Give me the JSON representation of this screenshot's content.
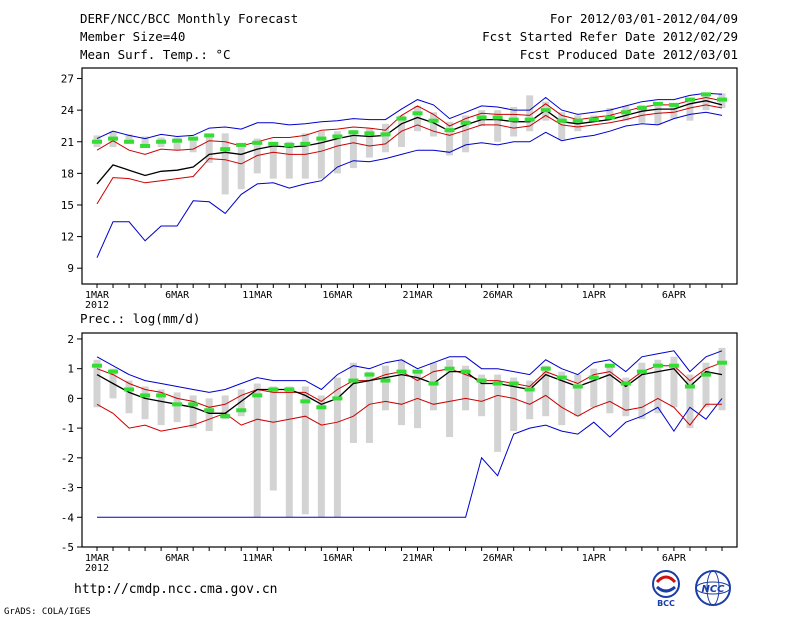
{
  "header": {
    "title": "DERF/NCC/BCC Monthly Forecast",
    "member_size": "Member Size=40",
    "variable": "Mean Surf. Temp.: °C",
    "forecast_for": "For 2012/03/01-2012/04/09",
    "started_refer": "Fcst Started Refer Date 2012/02/29",
    "produced": "Fcst Produced Date 2012/03/01"
  },
  "footer": {
    "url": "http://cmdp.ncc.cma.gov.cn",
    "credit": "GrADS: COLA/IGES",
    "logo_bcc_text": "BCC",
    "logo_ncc_text": "NCC"
  },
  "colors": {
    "ensemble_mean": "#000000",
    "envelope": "#0000cc",
    "spread": "#cc0000",
    "member_marker": "#33dd33",
    "range_bar": "#d3d3d3"
  },
  "chart_data": [
    {
      "type": "line",
      "title": "Mean Surf. Temp.: °C",
      "x_tick_labels": [
        "1MAR",
        "6MAR",
        "11MAR",
        "16MAR",
        "21MAR",
        "26MAR",
        "1APR",
        "6APR"
      ],
      "x_tick_days": [
        1,
        6,
        11,
        16,
        21,
        26,
        32,
        37
      ],
      "year_label": "2012",
      "xlim": [
        1,
        40
      ],
      "ylim": [
        7.5,
        28
      ],
      "yticks": [
        9,
        12,
        15,
        18,
        21,
        24,
        27
      ],
      "days": [
        1,
        2,
        3,
        4,
        5,
        6,
        7,
        8,
        9,
        10,
        11,
        12,
        13,
        14,
        15,
        16,
        17,
        18,
        19,
        20,
        21,
        22,
        23,
        24,
        25,
        26,
        27,
        28,
        29,
        30,
        31,
        32,
        33,
        34,
        35,
        36,
        37,
        38,
        39,
        40
      ],
      "series": [
        {
          "name": "max",
          "color": "#0000cc",
          "values": [
            21.3,
            22.0,
            21.6,
            21.3,
            21.7,
            21.5,
            21.6,
            22.3,
            22.4,
            22.2,
            22.8,
            22.8,
            22.6,
            22.7,
            22.9,
            23.0,
            23.2,
            23.1,
            23.1,
            24.1,
            25.0,
            24.5,
            23.2,
            23.8,
            24.4,
            24.3,
            24.0,
            24.0,
            25.2,
            24.0,
            23.6,
            23.8,
            24.0,
            24.4,
            24.8,
            25.0,
            25.0,
            25.4,
            25.6,
            25.5
          ]
        },
        {
          "name": "upper",
          "color": "#cc0000",
          "values": [
            20.2,
            21.1,
            20.2,
            19.8,
            20.3,
            20.2,
            20.3,
            21.1,
            21.0,
            20.6,
            21.0,
            21.4,
            21.4,
            21.6,
            22.1,
            22.2,
            22.4,
            22.3,
            22.1,
            23.5,
            24.4,
            23.6,
            22.5,
            23.2,
            23.7,
            23.6,
            23.6,
            23.5,
            24.6,
            23.5,
            23.1,
            23.3,
            23.5,
            23.9,
            24.3,
            24.5,
            24.5,
            24.9,
            25.2,
            24.9
          ]
        },
        {
          "name": "mean",
          "color": "#000000",
          "values": [
            17.0,
            18.8,
            18.3,
            17.8,
            18.2,
            18.3,
            18.6,
            19.8,
            20.0,
            19.8,
            20.3,
            20.6,
            20.5,
            20.6,
            20.9,
            21.3,
            21.6,
            21.5,
            21.6,
            22.7,
            23.3,
            22.8,
            22.0,
            22.6,
            23.1,
            23.1,
            22.9,
            22.9,
            24.0,
            22.9,
            22.7,
            22.9,
            23.1,
            23.5,
            23.9,
            24.1,
            24.1,
            24.6,
            24.9,
            24.5
          ]
        },
        {
          "name": "lower",
          "color": "#cc0000",
          "values": [
            15.1,
            17.6,
            17.5,
            17.1,
            17.3,
            17.5,
            17.7,
            19.4,
            19.3,
            18.9,
            19.7,
            20.0,
            19.8,
            19.8,
            20.1,
            20.6,
            20.9,
            20.6,
            20.8,
            22.0,
            22.6,
            22.0,
            21.6,
            22.1,
            22.6,
            22.6,
            22.3,
            22.5,
            23.5,
            22.6,
            22.4,
            22.6,
            22.8,
            23.1,
            23.5,
            23.7,
            23.8,
            24.2,
            24.5,
            24.2
          ]
        },
        {
          "name": "min",
          "color": "#0000cc",
          "values": [
            10.0,
            13.4,
            13.4,
            11.6,
            13.0,
            13.0,
            15.4,
            15.3,
            14.2,
            16.0,
            17.0,
            17.1,
            16.6,
            17.0,
            17.3,
            18.6,
            19.2,
            19.1,
            19.4,
            19.8,
            20.2,
            20.2,
            20.0,
            20.7,
            20.9,
            20.7,
            21.0,
            21.0,
            21.9,
            21.1,
            21.4,
            21.6,
            22.0,
            22.5,
            22.7,
            22.6,
            23.2,
            23.6,
            23.8,
            23.5
          ]
        },
        {
          "name": "bar_low",
          "color": "#d3d3d3",
          "values": [
            20.5,
            20.5,
            20.8,
            20.5,
            20.5,
            20.2,
            20.0,
            19.0,
            16.0,
            16.5,
            18.0,
            17.5,
            17.5,
            17.5,
            17.5,
            18.0,
            18.5,
            19.5,
            20.0,
            20.5,
            22.0,
            21.5,
            19.7,
            20.0,
            22.5,
            21.0,
            21.5,
            22.0,
            23.0,
            21.2,
            22.0,
            23.0,
            23.2,
            23.0,
            22.8,
            22.6,
            23.2,
            23.0,
            24.0,
            24.2
          ]
        },
        {
          "name": "bar_high",
          "color": "#d3d3d3",
          "values": [
            21.6,
            22.0,
            21.7,
            21.5,
            21.4,
            21.4,
            21.3,
            21.7,
            21.8,
            20.8,
            21.3,
            21.0,
            21.0,
            21.8,
            22.0,
            22.0,
            22.1,
            22.3,
            22.7,
            23.5,
            24.4,
            23.8,
            22.9,
            23.5,
            24.0,
            24.0,
            24.3,
            25.4,
            24.8,
            23.8,
            23.5,
            23.5,
            24.2,
            24.4,
            24.5,
            24.7,
            24.6,
            25.2,
            25.6,
            25.6
          ]
        },
        {
          "name": "observed",
          "color": "#33dd33",
          "values": [
            21.0,
            21.3,
            21.0,
            20.6,
            21.0,
            21.1,
            21.3,
            21.6,
            20.3,
            20.7,
            20.9,
            20.8,
            20.7,
            20.8,
            21.3,
            21.5,
            21.9,
            21.8,
            21.7,
            23.2,
            23.7,
            23.0,
            22.1,
            22.8,
            23.3,
            23.3,
            23.1,
            23.1,
            24.0,
            23.0,
            23.0,
            23.1,
            23.3,
            23.8,
            24.2,
            24.6,
            24.5,
            25.0,
            25.5,
            25.0
          ]
        }
      ]
    },
    {
      "type": "line",
      "title": "Prec.: log(mm/d)",
      "x_tick_labels": [
        "1MAR",
        "6MAR",
        "11MAR",
        "16MAR",
        "21MAR",
        "26MAR",
        "1APR",
        "6APR"
      ],
      "x_tick_days": [
        1,
        6,
        11,
        16,
        21,
        26,
        32,
        37
      ],
      "year_label": "2012",
      "xlim": [
        1,
        40
      ],
      "ylim": [
        -5,
        2.2
      ],
      "yticks": [
        -5,
        -4,
        -3,
        -2,
        -1,
        0,
        1,
        2
      ],
      "days": [
        1,
        2,
        3,
        4,
        5,
        6,
        7,
        8,
        9,
        10,
        11,
        12,
        13,
        14,
        15,
        16,
        17,
        18,
        19,
        20,
        21,
        22,
        23,
        24,
        25,
        26,
        27,
        28,
        29,
        30,
        31,
        32,
        33,
        34,
        35,
        36,
        37,
        38,
        39,
        40
      ],
      "series": [
        {
          "name": "max",
          "color": "#0000cc",
          "values": [
            1.4,
            1.1,
            0.8,
            0.6,
            0.5,
            0.4,
            0.3,
            0.2,
            0.3,
            0.5,
            0.7,
            0.6,
            0.6,
            0.6,
            0.3,
            0.8,
            1.1,
            1.0,
            1.2,
            1.3,
            1.0,
            1.2,
            1.4,
            1.4,
            1.0,
            1.0,
            0.9,
            0.8,
            1.3,
            1.0,
            0.8,
            1.2,
            1.3,
            0.9,
            1.4,
            1.5,
            1.6,
            0.9,
            1.4,
            1.6
          ]
        },
        {
          "name": "upper",
          "color": "#cc0000",
          "values": [
            1.0,
            0.8,
            0.5,
            0.3,
            0.2,
            0.0,
            -0.1,
            -0.3,
            -0.2,
            0.1,
            0.3,
            0.2,
            0.2,
            0.2,
            -0.1,
            0.3,
            0.6,
            0.6,
            0.8,
            0.9,
            0.6,
            0.9,
            1.0,
            0.8,
            0.6,
            0.6,
            0.5,
            0.4,
            0.9,
            0.7,
            0.5,
            0.8,
            0.9,
            0.5,
            0.9,
            1.1,
            1.1,
            0.6,
            1.0,
            1.2
          ]
        },
        {
          "name": "mean",
          "color": "#000000",
          "values": [
            0.8,
            0.5,
            0.2,
            0.0,
            -0.1,
            -0.2,
            -0.3,
            -0.5,
            -0.5,
            -0.1,
            0.3,
            0.3,
            0.3,
            0.1,
            -0.2,
            0.0,
            0.5,
            0.6,
            0.7,
            0.8,
            0.7,
            0.5,
            0.9,
            0.9,
            0.5,
            0.5,
            0.4,
            0.3,
            0.8,
            0.6,
            0.4,
            0.6,
            0.8,
            0.4,
            0.8,
            0.9,
            1.0,
            0.4,
            0.9,
            0.8
          ]
        },
        {
          "name": "lower",
          "color": "#cc0000",
          "values": [
            -0.2,
            -0.5,
            -1.0,
            -0.9,
            -1.1,
            -1.0,
            -0.9,
            -0.7,
            -0.5,
            -0.9,
            -0.7,
            -0.8,
            -0.7,
            -0.6,
            -0.9,
            -0.8,
            -0.6,
            -0.2,
            -0.1,
            -0.2,
            0.0,
            -0.2,
            -0.1,
            0.0,
            -0.1,
            0.1,
            0.0,
            -0.2,
            0.1,
            -0.3,
            -0.6,
            -0.3,
            -0.1,
            -0.4,
            -0.3,
            0.0,
            -0.3,
            -0.9,
            -0.2,
            -0.2
          ]
        },
        {
          "name": "min",
          "color": "#0000cc",
          "values": [
            -4,
            -4,
            -4,
            -4,
            -4,
            -4,
            -4,
            -4,
            -4,
            -4,
            -4,
            -4,
            -4,
            -4,
            -4,
            -4,
            -4,
            -4,
            -4,
            -4,
            -4,
            -4,
            -4,
            -4,
            -2.0,
            -2.6,
            -1.2,
            -1.0,
            -0.9,
            -1.1,
            -1.2,
            -0.8,
            -1.3,
            -0.8,
            -0.6,
            -0.3,
            -1.1,
            -0.3,
            -0.7,
            0.0
          ]
        },
        {
          "name": "bar_low",
          "color": "#d3d3d3",
          "values": [
            -0.3,
            0.0,
            -0.5,
            -0.7,
            -0.9,
            -0.8,
            -1.0,
            -1.1,
            -0.7,
            -0.6,
            -4.0,
            -3.1,
            -4.0,
            -3.9,
            -4.0,
            -4.0,
            -1.5,
            -1.5,
            -0.4,
            -0.9,
            -1.0,
            -0.4,
            -1.3,
            -0.4,
            -0.6,
            -1.8,
            -1.1,
            -0.7,
            -0.6,
            -0.9,
            -0.6,
            -0.3,
            -0.5,
            -0.6,
            -0.7,
            -0.5,
            -0.3,
            -1.0,
            -0.3,
            -0.4
          ]
        },
        {
          "name": "bar_high",
          "color": "#d3d3d3",
          "values": [
            1.3,
            1.0,
            0.6,
            0.4,
            0.3,
            0.2,
            0.1,
            0.0,
            0.1,
            0.3,
            0.5,
            0.4,
            0.4,
            0.4,
            0.1,
            0.7,
            1.2,
            0.9,
            1.1,
            1.3,
            0.9,
            1.2,
            1.3,
            1.1,
            0.8,
            0.8,
            0.7,
            0.6,
            1.1,
            0.9,
            0.8,
            1.0,
            1.1,
            0.7,
            1.2,
            1.3,
            1.4,
            0.8,
            1.2,
            1.7
          ]
        },
        {
          "name": "observed",
          "color": "#33dd33",
          "values": [
            1.1,
            0.9,
            0.3,
            0.1,
            0.1,
            -0.2,
            -0.2,
            -0.4,
            -0.6,
            -0.4,
            0.1,
            0.3,
            0.3,
            -0.1,
            -0.3,
            0.0,
            0.6,
            0.8,
            0.6,
            0.9,
            0.9,
            0.5,
            1.0,
            0.9,
            0.6,
            0.5,
            0.5,
            0.3,
            1.0,
            0.7,
            0.4,
            0.7,
            1.1,
            0.5,
            0.9,
            1.1,
            1.1,
            0.4,
            0.8,
            1.2
          ]
        }
      ]
    }
  ]
}
